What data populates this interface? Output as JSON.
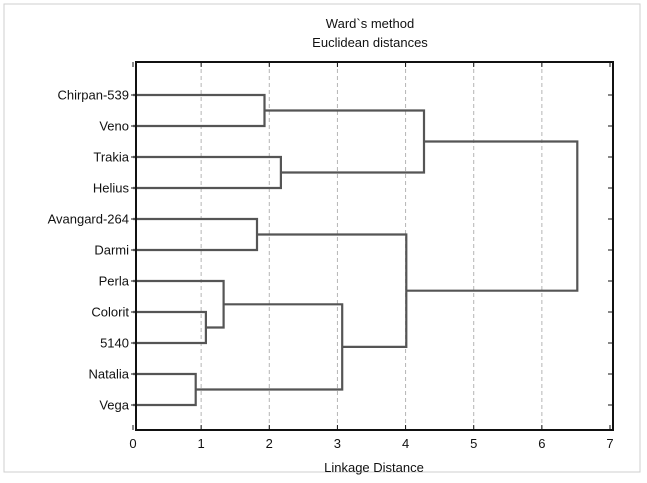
{
  "chart_data": {
    "type": "dendrogram",
    "title": "Ward`s method",
    "subtitle": "Euclidean distances",
    "xlabel": "Linkage Distance",
    "ylabel": "",
    "xlim": [
      0,
      7
    ],
    "x_ticks": [
      0,
      1,
      2,
      3,
      4,
      5,
      6,
      7
    ],
    "grid": "vertical dashed",
    "leaves": [
      "Chirpan-539",
      "Veno",
      "Trakia",
      "Helius",
      "Avangard-264",
      "Darmi",
      "Perla",
      "Colorit",
      "5140",
      "Natalia",
      "Vega"
    ],
    "merges": [
      {
        "a": "Natalia",
        "b": "Vega",
        "distance": 0.92
      },
      {
        "a": "Colorit",
        "b": "5140",
        "distance": 1.07
      },
      {
        "a": "Perla",
        "b": "(Colorit, 5140)",
        "distance": 1.33
      },
      {
        "a": "Avangard-264",
        "b": "Darmi",
        "distance": 1.82
      },
      {
        "a": "Chirpan-539",
        "b": "Veno",
        "distance": 1.93
      },
      {
        "a": "Trakia",
        "b": "Helius",
        "distance": 2.17
      },
      {
        "a": "(Perla, Colorit, 5140)",
        "b": "(Natalia, Vega)",
        "distance": 3.07
      },
      {
        "a": "(Avangard-264, Darmi)",
        "b": "(Perla, Colorit, 5140, Natalia, Vega)",
        "distance": 4.01
      },
      {
        "a": "(Chirpan-539, Veno)",
        "b": "(Trakia, Helius)",
        "distance": 4.27
      },
      {
        "a": "(Chirpan-539, Veno, Trakia, Helius)",
        "b": "(Avangard-264 ... Vega)",
        "distance": 6.52
      }
    ]
  }
}
